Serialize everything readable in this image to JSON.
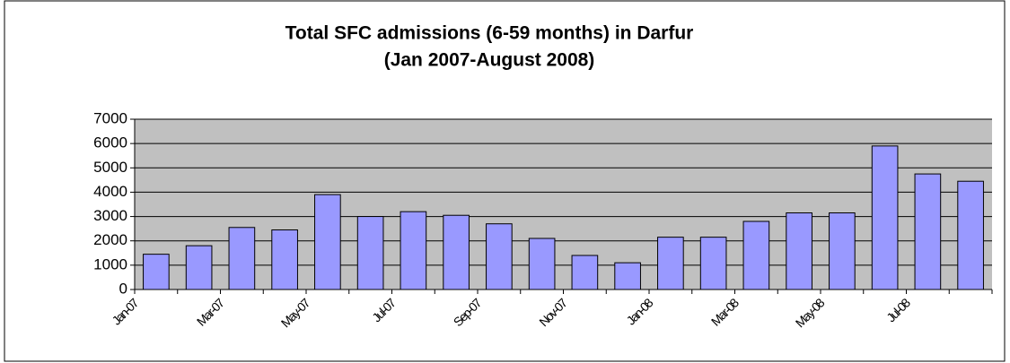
{
  "chart_data": {
    "type": "bar",
    "title": "Total SFC admissions (6-59 months) in Darfur",
    "subtitle": "(Jan 2007-August 2008)",
    "categories": [
      "Jan-07",
      null,
      "Mar-07",
      null,
      "May-07",
      null,
      "Jul-07",
      null,
      "Sep-07",
      null,
      "Nov-07",
      null,
      "Jan-08",
      null,
      "Mar-08",
      null,
      "May-08",
      null,
      "Jul-08",
      null
    ],
    "values": [
      1450,
      1800,
      2550,
      2450,
      3900,
      3000,
      3200,
      3050,
      2700,
      2100,
      1400,
      1100,
      2150,
      2150,
      2800,
      3150,
      3150,
      5900,
      4750,
      4450
    ],
    "color": "#9999ff",
    "ylim": [
      0,
      7000
    ],
    "yticks": [
      0,
      1000,
      2000,
      3000,
      4000,
      5000,
      6000,
      7000
    ],
    "grid": true
  }
}
